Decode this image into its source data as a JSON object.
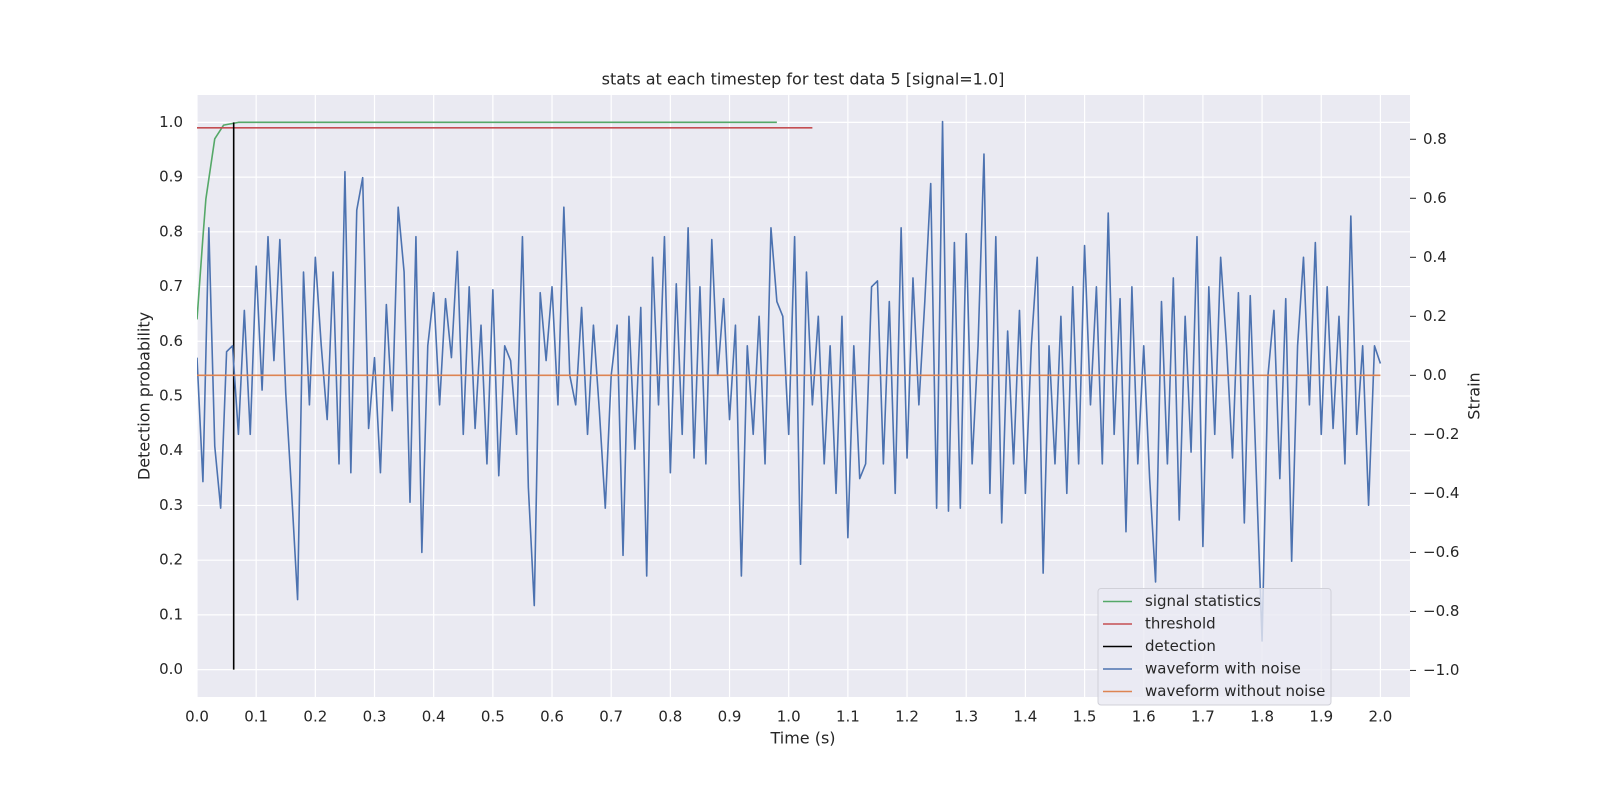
{
  "chart_data": {
    "type": "line",
    "title": "stats at each timestep for test data 5 [signal=1.0]",
    "x_label": "Time (s)",
    "y_label": "Detection probability",
    "y2_label": "Strain",
    "xlim": [
      0,
      2.05
    ],
    "ylim": [
      -0.05,
      1.05
    ],
    "y2lim": [
      -1.09,
      0.95
    ],
    "xticks": [
      {
        "value": 0,
        "label": "0.0"
      },
      0.1,
      0.2,
      0.3,
      0.4,
      0.5,
      0.6,
      0.7,
      0.8,
      0.9,
      {
        "value": 1,
        "label": "1.0"
      },
      1.1,
      1.2,
      1.3,
      1.4,
      1.5,
      1.6,
      1.7,
      1.8,
      1.9,
      {
        "value": 2,
        "label": "2.0"
      }
    ],
    "yticks": [
      {
        "value": 0,
        "label": "0.0"
      },
      0.1,
      0.2,
      0.3,
      0.4,
      0.5,
      0.6,
      0.7,
      0.8,
      0.9,
      {
        "value": 1,
        "label": "1.0"
      }
    ],
    "y2ticks": [
      {
        "value": -1,
        "label": "−1.0"
      },
      {
        "value": -0.8,
        "label": "−0.8"
      },
      {
        "value": -0.6,
        "label": "−0.6"
      },
      {
        "value": -0.4,
        "label": "−0.4"
      },
      {
        "value": -0.2,
        "label": "−0.2"
      },
      {
        "value": 0,
        "label": "0.0"
      },
      0.2,
      0.4,
      0.6,
      0.8
    ],
    "grid": true,
    "legend_loc": "lower right",
    "series": [
      {
        "name": "signal statistics",
        "color": "#55a868",
        "x": [
          0,
          0.01,
          0.015,
          0.03,
          0.045,
          0.07,
          0.98
        ],
        "values": [
          0.64,
          0.79,
          0.86,
          0.97,
          0.995,
          1.0,
          1.0
        ]
      },
      {
        "name": "threshold",
        "color": "#c44e52",
        "x": [
          0,
          1.04
        ],
        "values": [
          0.99,
          0.99
        ]
      },
      {
        "name": "detection",
        "color": "#000000",
        "x": [
          0.062,
          0.062
        ],
        "values": [
          0,
          1.0
        ]
      },
      {
        "name": "waveform with noise",
        "color": "#4c72b0",
        "axis": "y2",
        "x": [
          0,
          0.01,
          0.02,
          0.03,
          0.04,
          0.05,
          0.06,
          0.07,
          0.08,
          0.09,
          0.1,
          0.11,
          0.12,
          0.13,
          0.14,
          0.15,
          0.16,
          0.17,
          0.18,
          0.19,
          0.2,
          0.21,
          0.22,
          0.23,
          0.24,
          0.25,
          0.26,
          0.27,
          0.28,
          0.29,
          0.3,
          0.31,
          0.32,
          0.33,
          0.34,
          0.35,
          0.36,
          0.37,
          0.38,
          0.39,
          0.4,
          0.41,
          0.42,
          0.43,
          0.44,
          0.45,
          0.46,
          0.47,
          0.48,
          0.49,
          0.5,
          0.51,
          0.52,
          0.53,
          0.54,
          0.55,
          0.56,
          0.57,
          0.58,
          0.59,
          0.6,
          0.61,
          0.62,
          0.63,
          0.64,
          0.65,
          0.66,
          0.67,
          0.68,
          0.69,
          0.7,
          0.71,
          0.72,
          0.73,
          0.74,
          0.75,
          0.76,
          0.77,
          0.78,
          0.79,
          0.8,
          0.81,
          0.82,
          0.83,
          0.84,
          0.85,
          0.86,
          0.87,
          0.88,
          0.89,
          0.9,
          0.91,
          0.92,
          0.93,
          0.94,
          0.95,
          0.96,
          0.97,
          0.98,
          0.99,
          1.0,
          1.01,
          1.02,
          1.03,
          1.04,
          1.05,
          1.06,
          1.07,
          1.08,
          1.09,
          1.1,
          1.11,
          1.12,
          1.13,
          1.14,
          1.15,
          1.16,
          1.17,
          1.18,
          1.19,
          1.2,
          1.21,
          1.22,
          1.23,
          1.24,
          1.25,
          1.26,
          1.27,
          1.28,
          1.29,
          1.3,
          1.31,
          1.32,
          1.33,
          1.34,
          1.35,
          1.36,
          1.37,
          1.38,
          1.39,
          1.4,
          1.41,
          1.42,
          1.43,
          1.44,
          1.45,
          1.46,
          1.47,
          1.48,
          1.49,
          1.5,
          1.51,
          1.52,
          1.53,
          1.54,
          1.55,
          1.56,
          1.57,
          1.58,
          1.59,
          1.6,
          1.61,
          1.62,
          1.63,
          1.64,
          1.65,
          1.66,
          1.67,
          1.68,
          1.69,
          1.7,
          1.71,
          1.72,
          1.73,
          1.74,
          1.75,
          1.76,
          1.77,
          1.78,
          1.79,
          1.8,
          1.81,
          1.82,
          1.83,
          1.84,
          1.85,
          1.86,
          1.87,
          1.88,
          1.89,
          1.9,
          1.91,
          1.92,
          1.93,
          1.94,
          1.95,
          1.96,
          1.97,
          1.98,
          1.99,
          2.0
        ],
        "values": [
          0.06,
          -0.36,
          0.5,
          -0.24,
          -0.45,
          0.08,
          0.1,
          -0.2,
          0.22,
          -0.2,
          0.37,
          -0.05,
          0.47,
          0.05,
          0.46,
          -0.06,
          -0.4,
          -0.76,
          0.35,
          -0.1,
          0.4,
          0.1,
          -0.15,
          0.35,
          -0.3,
          0.69,
          -0.33,
          0.56,
          0.67,
          -0.18,
          0.06,
          -0.33,
          0.24,
          -0.12,
          0.57,
          0.35,
          -0.43,
          0.47,
          -0.6,
          0.1,
          0.28,
          -0.1,
          0.26,
          0.06,
          0.42,
          -0.2,
          0.3,
          -0.18,
          0.17,
          -0.3,
          0.29,
          -0.34,
          0.1,
          0.05,
          -0.2,
          0.47,
          -0.38,
          -0.78,
          0.28,
          0.05,
          0.3,
          -0.1,
          0.57,
          0.0,
          -0.1,
          0.23,
          -0.2,
          0.17,
          -0.12,
          -0.45,
          0.0,
          0.17,
          -0.61,
          0.2,
          -0.25,
          0.23,
          -0.68,
          0.4,
          -0.1,
          0.47,
          -0.33,
          0.31,
          -0.2,
          0.5,
          -0.28,
          0.3,
          -0.3,
          0.46,
          0.0,
          0.26,
          -0.15,
          0.17,
          -0.68,
          0.1,
          -0.2,
          0.2,
          -0.3,
          0.5,
          0.25,
          0.2,
          -0.2,
          0.47,
          -0.64,
          0.35,
          -0.1,
          0.2,
          -0.3,
          0.1,
          -0.4,
          0.2,
          -0.55,
          0.1,
          -0.35,
          -0.3,
          0.3,
          0.32,
          -0.3,
          0.25,
          -0.4,
          0.5,
          -0.28,
          0.33,
          -0.1,
          0.25,
          0.65,
          -0.45,
          0.86,
          -0.46,
          0.45,
          -0.45,
          0.48,
          -0.3,
          0.1,
          0.75,
          -0.4,
          0.47,
          -0.5,
          0.15,
          -0.3,
          0.22,
          -0.4,
          0.1,
          0.4,
          -0.67,
          0.1,
          -0.3,
          0.2,
          -0.4,
          0.3,
          -0.3,
          0.44,
          -0.1,
          0.3,
          -0.3,
          0.55,
          -0.2,
          0.26,
          -0.53,
          0.3,
          -0.3,
          0.1,
          -0.35,
          -0.7,
          0.25,
          -0.3,
          0.33,
          -0.49,
          0.2,
          -0.26,
          0.47,
          -0.58,
          0.3,
          -0.2,
          0.4,
          0.1,
          -0.28,
          0.28,
          -0.5,
          0.27,
          -0.32,
          -0.9,
          0.0,
          0.22,
          -0.35,
          0.26,
          -0.63,
          0.1,
          0.4,
          -0.1,
          0.45,
          -0.2,
          0.3,
          -0.18,
          0.2,
          -0.3,
          0.54,
          -0.2,
          0.1,
          -0.44,
          0.1,
          0.04
        ]
      },
      {
        "name": "waveform without noise",
        "color": "#dd8452",
        "axis": "y2",
        "x": [
          0,
          2.0
        ],
        "values": [
          0,
          0
        ]
      }
    ]
  }
}
